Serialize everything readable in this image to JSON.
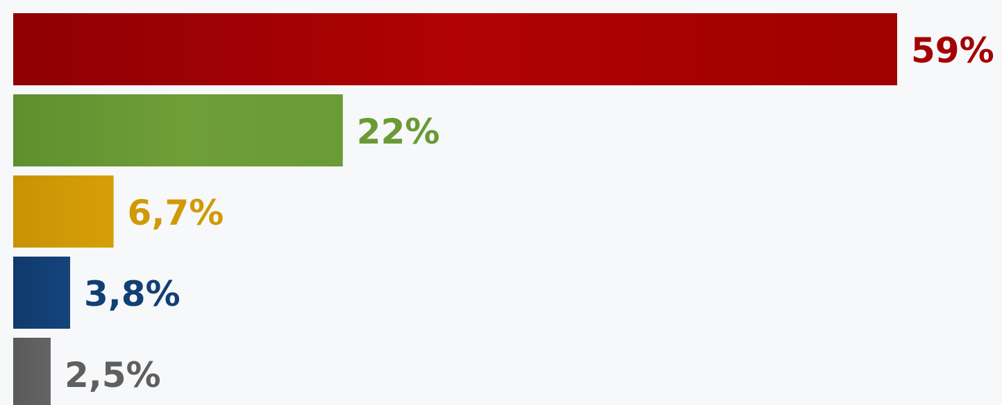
{
  "chart_data": {
    "type": "bar",
    "orientation": "horizontal",
    "values": [
      59,
      22,
      6.7,
      3.8,
      2.5
    ],
    "value_labels": [
      "59%",
      "22%",
      "6,7%",
      "3,8%",
      "2,5%"
    ],
    "colors": [
      "#a40202",
      "#6a9a35",
      "#d19a05",
      "#123f74",
      "#5f5f5f"
    ],
    "xlim": [
      0,
      59
    ],
    "grid": false,
    "legend": "none"
  }
}
